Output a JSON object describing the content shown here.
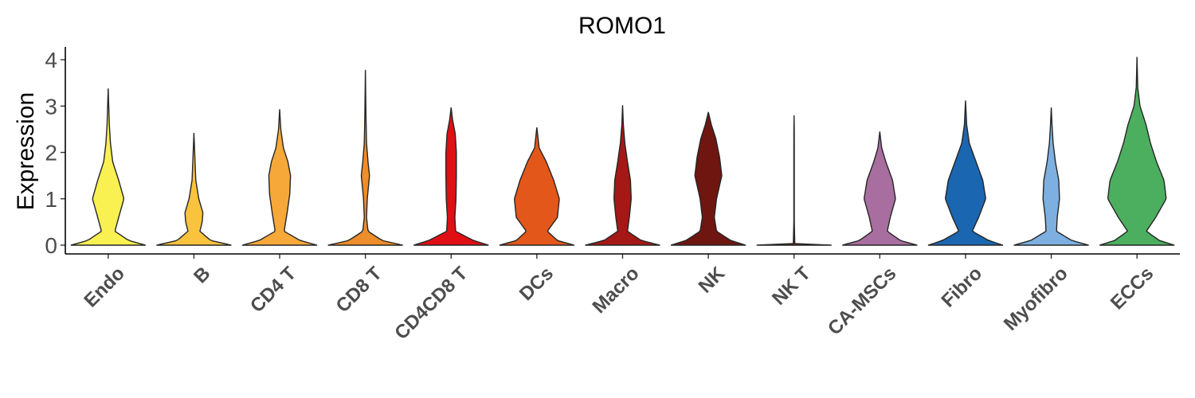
{
  "chart_data": {
    "type": "violin",
    "title": "ROMO1",
    "xlabel": "",
    "ylabel": "Expression",
    "ylim": [
      -0.2,
      4.3
    ],
    "yticks": [
      0,
      1,
      2,
      3,
      4
    ],
    "grid": false,
    "legend": "none",
    "categories": [
      "Endo",
      "B",
      "CD4 T",
      "CD8 T",
      "CD4CD8 T",
      "DCs",
      "Macro",
      "NK",
      "NK T",
      "CA-MSCs",
      "Fibro",
      "Myofibro",
      "ECCs"
    ],
    "series": [
      {
        "category": "Endo",
        "color": "#F9F052",
        "max": 3.38,
        "density": [
          [
            0,
            1.0
          ],
          [
            0.1,
            0.55
          ],
          [
            0.3,
            0.18
          ],
          [
            0.6,
            0.28
          ],
          [
            1.0,
            0.42
          ],
          [
            1.4,
            0.28
          ],
          [
            1.8,
            0.12
          ],
          [
            2.2,
            0.06
          ],
          [
            2.6,
            0.03
          ],
          [
            3.38,
            0.0
          ]
        ]
      },
      {
        "category": "B",
        "color": "#F9C33E",
        "max": 2.42,
        "density": [
          [
            0,
            1.0
          ],
          [
            0.1,
            0.45
          ],
          [
            0.3,
            0.16
          ],
          [
            0.5,
            0.22
          ],
          [
            0.7,
            0.24
          ],
          [
            1.0,
            0.13
          ],
          [
            1.4,
            0.05
          ],
          [
            1.8,
            0.03
          ],
          [
            2.42,
            0.0
          ]
        ]
      },
      {
        "category": "CD4 T",
        "color": "#F6A839",
        "max": 2.93,
        "density": [
          [
            0,
            1.0
          ],
          [
            0.1,
            0.55
          ],
          [
            0.3,
            0.12
          ],
          [
            0.7,
            0.2
          ],
          [
            1.1,
            0.27
          ],
          [
            1.5,
            0.29
          ],
          [
            1.8,
            0.22
          ],
          [
            2.1,
            0.1
          ],
          [
            2.5,
            0.03
          ],
          [
            2.93,
            0.0
          ]
        ]
      },
      {
        "category": "CD8 T",
        "color": "#EE8D2B",
        "max": 3.78,
        "density": [
          [
            0,
            1.0
          ],
          [
            0.1,
            0.45
          ],
          [
            0.3,
            0.07
          ],
          [
            0.6,
            0.03
          ],
          [
            1.0,
            0.05
          ],
          [
            1.5,
            0.11
          ],
          [
            1.8,
            0.07
          ],
          [
            2.2,
            0.03
          ],
          [
            2.8,
            0.015
          ],
          [
            3.78,
            0.0
          ]
        ]
      },
      {
        "category": "CD4CD8 T",
        "color": "#E00F14",
        "max": 2.97,
        "density": [
          [
            0,
            1.0
          ],
          [
            0.1,
            0.6
          ],
          [
            0.3,
            0.12
          ],
          [
            0.6,
            0.1
          ],
          [
            1.0,
            0.13
          ],
          [
            1.5,
            0.14
          ],
          [
            2.0,
            0.14
          ],
          [
            2.4,
            0.11
          ],
          [
            2.7,
            0.04
          ],
          [
            2.97,
            0.0
          ]
        ]
      },
      {
        "category": "DCs",
        "color": "#E4571A",
        "max": 2.54,
        "density": [
          [
            0,
            1.0
          ],
          [
            0.1,
            0.55
          ],
          [
            0.3,
            0.28
          ],
          [
            0.6,
            0.55
          ],
          [
            1.0,
            0.6
          ],
          [
            1.4,
            0.45
          ],
          [
            1.8,
            0.25
          ],
          [
            2.1,
            0.06
          ],
          [
            2.54,
            0.0
          ]
        ]
      },
      {
        "category": "Macro",
        "color": "#A51816",
        "max": 3.02,
        "density": [
          [
            0,
            1.0
          ],
          [
            0.1,
            0.5
          ],
          [
            0.3,
            0.13
          ],
          [
            0.6,
            0.18
          ],
          [
            1.0,
            0.23
          ],
          [
            1.4,
            0.21
          ],
          [
            1.8,
            0.13
          ],
          [
            2.2,
            0.06
          ],
          [
            2.6,
            0.02
          ],
          [
            3.02,
            0.0
          ]
        ]
      },
      {
        "category": "NK",
        "color": "#6F1610",
        "max": 2.87,
        "density": [
          [
            0,
            1.0
          ],
          [
            0.1,
            0.6
          ],
          [
            0.3,
            0.22
          ],
          [
            0.6,
            0.16
          ],
          [
            1.0,
            0.22
          ],
          [
            1.5,
            0.36
          ],
          [
            1.9,
            0.3
          ],
          [
            2.3,
            0.2
          ],
          [
            2.6,
            0.08
          ],
          [
            2.87,
            0.0
          ]
        ]
      },
      {
        "category": "NK T",
        "color": "#6F1610",
        "max": 2.8,
        "density": [
          [
            0,
            1.0
          ],
          [
            0.02,
            0.02
          ],
          [
            0.5,
            0.006
          ],
          [
            1.0,
            0.006
          ],
          [
            1.5,
            0.006
          ],
          [
            2.0,
            0.006
          ],
          [
            2.5,
            0.005
          ],
          [
            2.8,
            0.0
          ]
        ]
      },
      {
        "category": "CA-MSCs",
        "color": "#A86E9F",
        "max": 2.45,
        "density": [
          [
            0,
            1.0
          ],
          [
            0.1,
            0.55
          ],
          [
            0.3,
            0.2
          ],
          [
            0.6,
            0.28
          ],
          [
            1.0,
            0.42
          ],
          [
            1.4,
            0.34
          ],
          [
            1.8,
            0.16
          ],
          [
            2.1,
            0.05
          ],
          [
            2.45,
            0.0
          ]
        ]
      },
      {
        "category": "Fibro",
        "color": "#1A66B1",
        "max": 3.12,
        "density": [
          [
            0,
            1.0
          ],
          [
            0.1,
            0.62
          ],
          [
            0.3,
            0.18
          ],
          [
            0.6,
            0.35
          ],
          [
            1.0,
            0.54
          ],
          [
            1.4,
            0.46
          ],
          [
            1.8,
            0.28
          ],
          [
            2.2,
            0.1
          ],
          [
            2.6,
            0.03
          ],
          [
            3.12,
            0.0
          ]
        ]
      },
      {
        "category": "Myofibro",
        "color": "#7DB0E0",
        "max": 2.97,
        "density": [
          [
            0,
            1.0
          ],
          [
            0.1,
            0.55
          ],
          [
            0.3,
            0.14
          ],
          [
            0.6,
            0.16
          ],
          [
            1.0,
            0.22
          ],
          [
            1.4,
            0.2
          ],
          [
            1.8,
            0.11
          ],
          [
            2.2,
            0.05
          ],
          [
            2.6,
            0.02
          ],
          [
            2.97,
            0.0
          ]
        ]
      },
      {
        "category": "ECCs",
        "color": "#4CAF5F",
        "max": 4.06,
        "density": [
          [
            0,
            1.0
          ],
          [
            0.1,
            0.6
          ],
          [
            0.3,
            0.25
          ],
          [
            0.6,
            0.5
          ],
          [
            1.0,
            0.78
          ],
          [
            1.4,
            0.72
          ],
          [
            1.8,
            0.52
          ],
          [
            2.2,
            0.36
          ],
          [
            2.6,
            0.24
          ],
          [
            3.0,
            0.08
          ],
          [
            3.4,
            0.02
          ],
          [
            4.06,
            0.0
          ]
        ]
      }
    ]
  }
}
